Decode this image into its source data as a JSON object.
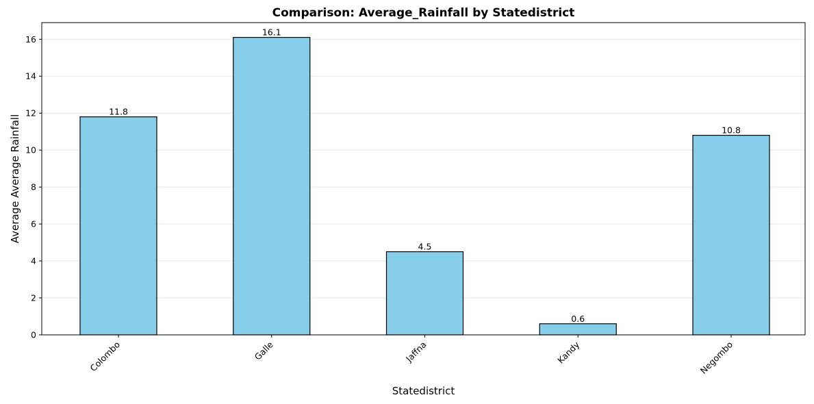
{
  "chart_data": {
    "type": "bar",
    "title": "Comparison: Average_Rainfall by Statedistrict",
    "xlabel": "Statedistrict",
    "ylabel": "Average Average Rainfall",
    "categories": [
      "Colombo",
      "Galle",
      "Jaffna",
      "Kandy",
      "Negombo"
    ],
    "values": [
      11.8,
      16.1,
      4.5,
      0.6,
      10.8
    ],
    "data_labels": [
      "11.8",
      "16.1",
      "4.5",
      "0.6",
      "10.8"
    ],
    "ylim": [
      0,
      16.9
    ],
    "yticks": [
      0,
      2,
      4,
      6,
      8,
      10,
      12,
      14,
      16
    ],
    "grid": "horizontal",
    "bar_color": "#87ceeb",
    "edge_color": "#000000"
  }
}
